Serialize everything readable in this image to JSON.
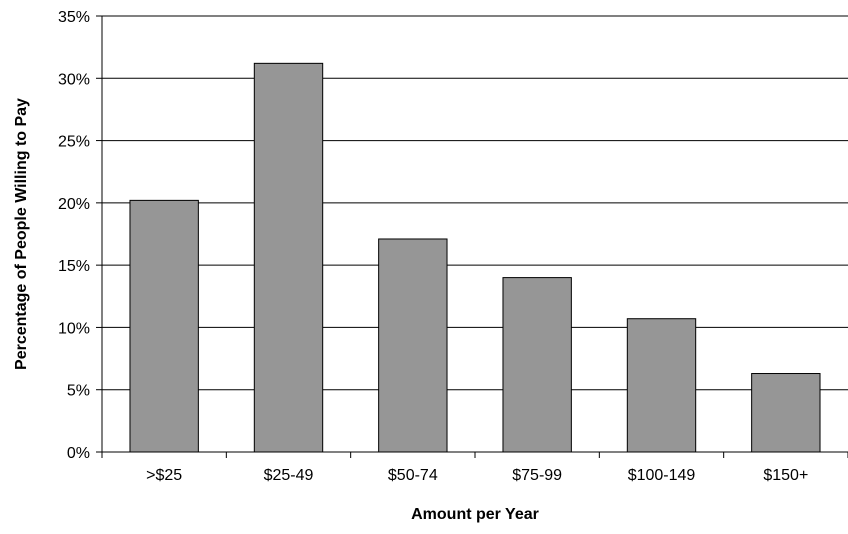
{
  "chart_data": {
    "type": "bar",
    "title": "",
    "xlabel": "Amount per Year",
    "ylabel": "Percentage of People Willing to Pay",
    "categories": [
      ">$25",
      "$25-49",
      "$50-74",
      "$75-99",
      "$100-149",
      "$150+"
    ],
    "values": [
      20.2,
      31.2,
      17.1,
      14.0,
      10.7,
      6.3
    ],
    "ylim": [
      0,
      35
    ],
    "yticks": [
      0,
      5,
      10,
      15,
      20,
      25,
      30,
      35
    ],
    "ytick_labels": [
      "0%",
      "5%",
      "10%",
      "15%",
      "20%",
      "25%",
      "30%",
      "35%"
    ],
    "grid": true,
    "legend": "none",
    "colors": {
      "bar_fill": "#969696",
      "bar_stroke": "#000000",
      "grid": "#000000",
      "axis": "#000000"
    }
  }
}
